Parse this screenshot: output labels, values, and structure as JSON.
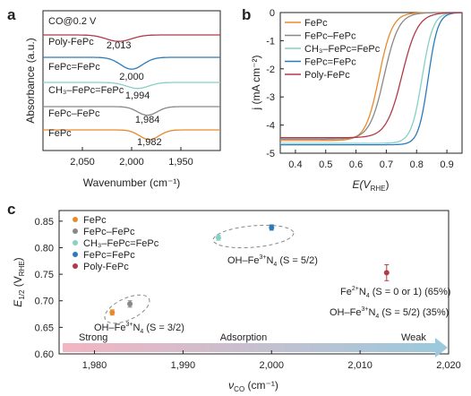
{
  "panels": {
    "a": "a",
    "b": "b",
    "c": "c"
  },
  "chart_data": [
    {
      "type": "line",
      "panel": "a",
      "xlabel": "Wavenumber (cm⁻¹)",
      "ylabel": "Absorbance (a.u.)",
      "condition": "CO@0.2 V",
      "xlim": [
        2090,
        1910
      ],
      "x_reversed": true,
      "xticks": [
        {
          "value": 2050,
          "label": "2,050"
        },
        {
          "value": 2000,
          "label": "2,000"
        },
        {
          "value": 1950,
          "label": "1,950"
        }
      ],
      "series": [
        {
          "name": "Poly-FePc",
          "color": "#b23a48",
          "offset": 5,
          "peak_cm": 2013,
          "peak_label": "2,013",
          "depth": 0.3,
          "width": 18
        },
        {
          "name": "FePc=FePc",
          "color": "#2b7bba",
          "offset": 4,
          "peak_cm": 2000,
          "peak_label": "2,000",
          "depth": 0.55,
          "width": 16
        },
        {
          "name": "CH₃–FePc=FePc",
          "color": "#86d0c4",
          "offset": 3,
          "peak_cm": 1994,
          "peak_label": "1,994",
          "depth": 0.28,
          "width": 16
        },
        {
          "name": "FePc–FePc",
          "color": "#888888",
          "offset": 2,
          "peak_cm": 1984,
          "peak_label": "1,984",
          "depth": 0.4,
          "width": 14
        },
        {
          "name": "FePc",
          "color": "#e88a2c",
          "offset": 1,
          "peak_cm": 1982,
          "peak_label": "1,982",
          "depth": 0.45,
          "width": 14
        }
      ]
    },
    {
      "type": "line",
      "panel": "b",
      "xlabel_main": "E(V",
      "xlabel_sub": "RHE",
      "xlabel_close": ")",
      "ylabel": "j (mA cm⁻²)",
      "xlim": [
        0.35,
        0.95
      ],
      "ylim": [
        -5,
        0
      ],
      "xticks": [
        0.4,
        0.5,
        0.6,
        0.7,
        0.8,
        0.9
      ],
      "yticks": [
        0,
        -1,
        -2,
        -3,
        -4,
        -5
      ],
      "series": [
        {
          "name": "FePc",
          "color": "#e88a2c",
          "jL": -4.55,
          "E_half": 0.676,
          "k": 0.022
        },
        {
          "name": "FePc–FePc",
          "color": "#888888",
          "jL": -4.5,
          "E_half": 0.693,
          "k": 0.024
        },
        {
          "name": "CH₃–FePc=FePc",
          "color": "#86d0c4",
          "jL": -4.65,
          "E_half": 0.818,
          "k": 0.018
        },
        {
          "name": "FePc=FePc",
          "color": "#2b7bba",
          "jL": -4.7,
          "E_half": 0.838,
          "k": 0.016
        },
        {
          "name": "Poly-FePc",
          "color": "#b23a48",
          "jL": -4.45,
          "E_half": 0.752,
          "k": 0.026
        }
      ]
    },
    {
      "type": "scatter",
      "panel": "c",
      "xlabel_main": "ν",
      "xlabel_sub": "CO",
      "xlabel_unit": " (cm⁻¹)",
      "ylabel_main": "E",
      "ylabel_sub1": "1/2",
      "ylabel_mid": " (V",
      "ylabel_sub2": "RHE",
      "ylabel_close": ")",
      "xlim": [
        1976,
        2020
      ],
      "ylim": [
        0.6,
        0.87
      ],
      "xticks": [
        {
          "value": 1980,
          "label": "1,980"
        },
        {
          "value": 1990,
          "label": "1,990"
        },
        {
          "value": 2000,
          "label": "2,000"
        },
        {
          "value": 2010,
          "label": "2,010"
        },
        {
          "value": 2020,
          "label": "2,020"
        }
      ],
      "yticks": [
        {
          "value": 0.6,
          "label": "0.60"
        },
        {
          "value": 0.65,
          "label": "0.65"
        },
        {
          "value": 0.7,
          "label": "0.70"
        },
        {
          "value": 0.75,
          "label": "0.75"
        },
        {
          "value": 0.8,
          "label": "0.80"
        },
        {
          "value": 0.85,
          "label": "0.85"
        }
      ],
      "points": [
        {
          "name": "FePc",
          "x": 1982,
          "y": 0.678,
          "err": 0.005,
          "color": "#e88a2c"
        },
        {
          "name": "FePc–FePc",
          "x": 1984,
          "y": 0.694,
          "err": 0.006,
          "color": "#888888"
        },
        {
          "name": "CH₃–FePc=FePc",
          "x": 1994,
          "y": 0.819,
          "err": 0.005,
          "color": "#86d0c4"
        },
        {
          "name": "FePc=FePc",
          "x": 2000,
          "y": 0.838,
          "err": 0.005,
          "color": "#2b7bba"
        },
        {
          "name": "Poly-FePc",
          "x": 2013,
          "y": 0.753,
          "err": 0.015,
          "color": "#b23a48"
        }
      ],
      "annotations": {
        "s32": {
          "main": "OH–Fe",
          "sup": "3+",
          "mid": "N",
          "sub": "4",
          "tail": " (S = 3/2)"
        },
        "s52": {
          "main": "OH–Fe",
          "sup": "3+",
          "mid": "N",
          "sub": "4",
          "tail": " (S = 5/2)"
        },
        "mix1": {
          "main": "Fe",
          "sup": "2+",
          "mid": "N",
          "sub": "4",
          "tail": " (S = 0 or 1) (65%)"
        },
        "mix2": {
          "main": "OH–Fe",
          "sup": "3+",
          "mid": "N",
          "sub": "4",
          "tail": " (S = 5/2) (35%)"
        }
      },
      "adsorption_arrow": {
        "left": "Strong",
        "middle": "Adsorption",
        "right": "Weak",
        "color_left": "#f3b5c2",
        "color_right": "#9cc9dc"
      }
    }
  ]
}
